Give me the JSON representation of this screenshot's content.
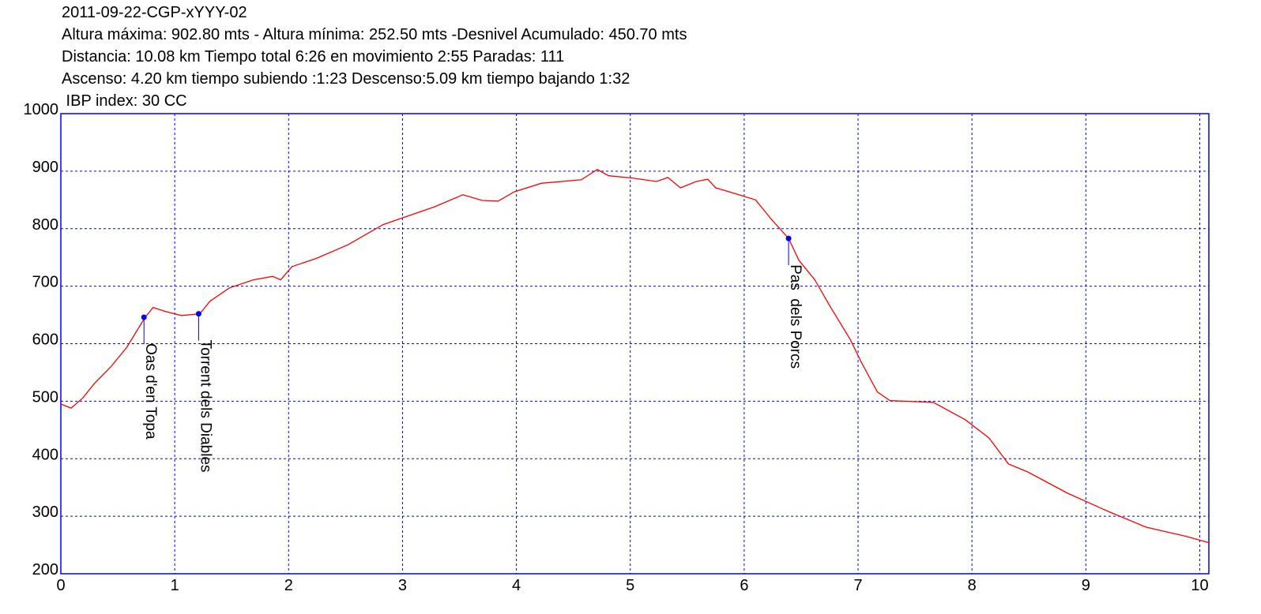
{
  "chart_data": {
    "type": "line",
    "title": "2011-09-22-CGP-xYYY-02",
    "subtitle": [
      "Altura máxima: 902.80 mts - Altura mínima: 252.50 mts -Desnivel Acumulado: 450.70 mts",
      "Distancia: 10.08 km  Tiempo total 6:26  en movimiento 2:55 Paradas: 111",
      "Ascenso: 4.20 km  tiempo subiendo :1:23  Descenso:5.09 km tiempo bajando 1:32",
      " IBP index: 30 CC"
    ],
    "x": [
      0,
      0.09,
      0.19,
      0.3,
      0.44,
      0.58,
      0.74,
      0.81,
      0.92,
      1.06,
      1.22,
      1.31,
      1.48,
      1.69,
      1.86,
      1.93,
      2.03,
      2.24,
      2.52,
      2.83,
      3.28,
      3.53,
      3.7,
      3.84,
      3.98,
      4.22,
      4.57,
      4.71,
      4.81,
      5.02,
      5.23,
      5.33,
      5.44,
      5.58,
      5.68,
      5.75,
      5.92,
      6.1,
      6.24,
      6.39,
      6.48,
      6.62,
      6.76,
      6.93,
      7.03,
      7.17,
      7.28,
      7.66,
      7.94,
      8.15,
      8.32,
      8.49,
      8.84,
      9.19,
      9.53,
      9.88,
      10.08
    ],
    "values": [
      495,
      488,
      505,
      532,
      560,
      594,
      646,
      663,
      656,
      649,
      652,
      674,
      697,
      711,
      717,
      711,
      734,
      748,
      772,
      807,
      838,
      859,
      849,
      848,
      864,
      879,
      885,
      903,
      892,
      888,
      882,
      889,
      871,
      882,
      886,
      871,
      861,
      850,
      816,
      783,
      745,
      711,
      663,
      608,
      567,
      516,
      501,
      498,
      468,
      436,
      391,
      377,
      340,
      309,
      281,
      265,
      254
    ],
    "color": "#ff0000",
    "annotations": [
      {
        "label": "Oas d'en Topa",
        "x": 0.73,
        "y": 646
      },
      {
        "label": "Torrent dels Diables",
        "x": 1.21,
        "y": 652
      },
      {
        "label": "Pas  dels Porcs",
        "x": 6.39,
        "y": 783
      }
    ],
    "xlim": [
      0,
      10.08
    ],
    "xticks": [
      0,
      1,
      2,
      3,
      4,
      5,
      6,
      7,
      8,
      9,
      10
    ],
    "ylim": [
      200,
      1000
    ],
    "yticks": [
      200,
      300,
      400,
      500,
      600,
      700,
      800,
      900,
      1000
    ],
    "grid": true
  }
}
